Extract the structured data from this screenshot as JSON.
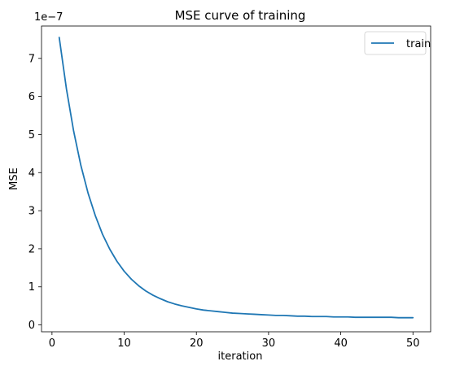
{
  "chart_data": {
    "type": "line",
    "title": "MSE curve of training",
    "xlabel": "iteration",
    "ylabel": "MSE",
    "y_offset_label": "1e−7",
    "y_scale_exponent": -7,
    "xlim": [
      -1.45,
      52.45
    ],
    "ylim": [
      -0.18,
      7.85
    ],
    "x_ticks": [
      0,
      10,
      20,
      30,
      40,
      50
    ],
    "x_tick_labels": [
      "0",
      "10",
      "20",
      "30",
      "40",
      "50"
    ],
    "y_ticks": [
      0,
      1,
      2,
      3,
      4,
      5,
      6,
      7
    ],
    "y_tick_labels": [
      "0",
      "1",
      "2",
      "3",
      "4",
      "5",
      "6",
      "7"
    ],
    "grid": false,
    "legend_position": "top-right",
    "series": [
      {
        "name": "train",
        "color": "#1f77b4",
        "x": [
          1,
          2,
          3,
          4,
          5,
          6,
          7,
          8,
          9,
          10,
          11,
          12,
          13,
          14,
          15,
          16,
          17,
          18,
          19,
          20,
          21,
          22,
          23,
          24,
          25,
          26,
          27,
          28,
          29,
          30,
          31,
          32,
          33,
          34,
          35,
          36,
          37,
          38,
          39,
          40,
          41,
          42,
          43,
          44,
          45,
          46,
          47,
          48,
          49,
          50
        ],
        "values": [
          7.55,
          6.2,
          5.09,
          4.19,
          3.46,
          2.87,
          2.38,
          1.99,
          1.67,
          1.41,
          1.2,
          1.03,
          0.89,
          0.78,
          0.69,
          0.61,
          0.55,
          0.5,
          0.46,
          0.42,
          0.39,
          0.37,
          0.35,
          0.33,
          0.31,
          0.3,
          0.29,
          0.28,
          0.27,
          0.26,
          0.25,
          0.25,
          0.24,
          0.23,
          0.23,
          0.22,
          0.22,
          0.22,
          0.21,
          0.21,
          0.21,
          0.2,
          0.2,
          0.2,
          0.2,
          0.2,
          0.2,
          0.19,
          0.19,
          0.19
        ]
      }
    ]
  }
}
